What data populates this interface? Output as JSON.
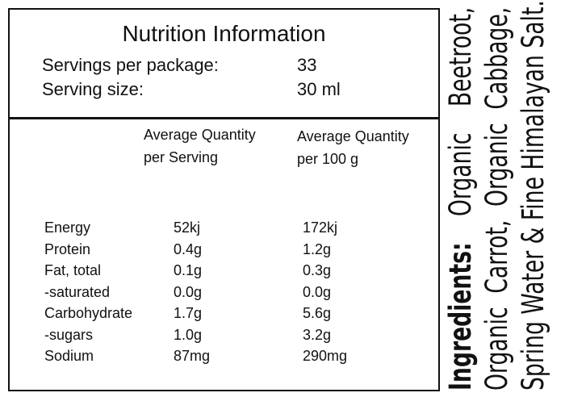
{
  "panel": {
    "title": "Nutrition Information",
    "servings": [
      {
        "label": "Servings per package:",
        "value": "33"
      },
      {
        "label": "Serving size:",
        "value": "30 ml"
      }
    ],
    "columns": [
      "Average Quantity per Serving",
      "Average Quantity per 100 g"
    ],
    "rows": [
      [
        "Energy",
        "52kj",
        "172kj"
      ],
      [
        "Protein",
        "0.4g",
        "1.2g"
      ],
      [
        "Fat, total",
        "0.1g",
        "0.3g"
      ],
      [
        "-saturated",
        "0.0g",
        "0.0g"
      ],
      [
        "Carbohydrate",
        "1.7g",
        "5.6g"
      ],
      [
        "-sugars",
        "1.0g",
        "3.2g"
      ],
      [
        "Sodium",
        "87mg",
        "290mg"
      ]
    ]
  },
  "ingredients": {
    "heading": "Ingredients:",
    "lines": [
      "Organic Beetroot,",
      "Organic Carrot, Organic Cabbage,",
      "Spring Water & Fine Himalayan Salt."
    ]
  }
}
